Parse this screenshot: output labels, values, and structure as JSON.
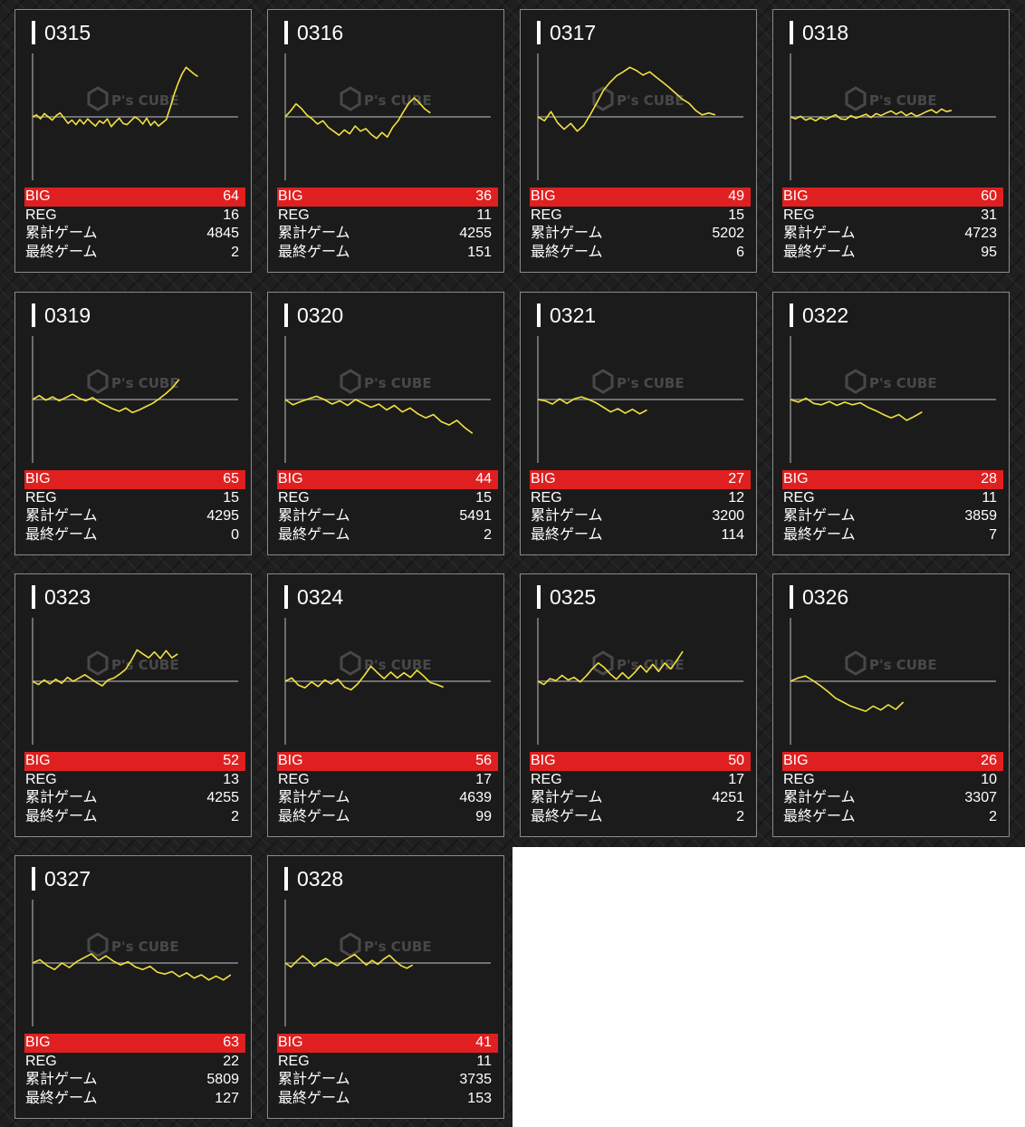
{
  "colors": {
    "accent_big": "#e02020",
    "line": "#f2e240",
    "baseline": "#8c8c8c"
  },
  "watermark": {
    "logo_text": "P's CUBE",
    "icon": "hexagon-cube-icon"
  },
  "labels": {
    "big": "BIG",
    "reg": "REG",
    "total": "累計ゲーム",
    "last": "最終ゲーム"
  },
  "machines": [
    {
      "id": "0315",
      "big": "64",
      "reg": "16",
      "total": "4845",
      "last": "2",
      "trend": [
        0,
        0.3,
        -0.3,
        0.5,
        0,
        -0.5,
        0.2,
        0.6,
        -0.2,
        -1,
        -0.5,
        -1.2,
        -0.4,
        -1.1,
        -0.3,
        -0.9,
        -1.4,
        -0.6,
        -1,
        -0.3,
        -1.5,
        -0.8,
        -0.2,
        -1,
        -1.2,
        -0.6,
        0,
        -0.4,
        -1.1,
        -0.2,
        -1.3,
        -0.7,
        -1.4,
        -0.9,
        -0.4,
        1.5,
        3.5,
        5.2,
        6.6,
        7.6,
        7.1,
        6.6,
        6.2
      ]
    },
    {
      "id": "0316",
      "big": "36",
      "reg": "11",
      "total": "4255",
      "last": "151",
      "trend": [
        0,
        0.9,
        2,
        1.3,
        0.3,
        -0.3,
        -1.1,
        -0.6,
        -1.6,
        -2.2,
        -2.8,
        -2,
        -2.6,
        -1.4,
        -2.2,
        -1.8,
        -2.7,
        -3.3,
        -2.4,
        -3.1,
        -1.6,
        -0.6,
        0.8,
        2.1,
        2.9,
        2.1,
        1.2,
        0.6
      ]
    },
    {
      "id": "0317",
      "big": "49",
      "reg": "15",
      "total": "5202",
      "last": "6",
      "trend": [
        0,
        -0.6,
        0.8,
        -0.9,
        -1.9,
        -1,
        -2.2,
        -1.3,
        0.4,
        2.2,
        4.1,
        5.3,
        6.3,
        6.9,
        7.6,
        7.1,
        6.4,
        6.9,
        6.1,
        5.3,
        4.5,
        3.6,
        2.7,
        2.1,
        1,
        0.3,
        0.6,
        0.3
      ]
    },
    {
      "id": "0318",
      "big": "60",
      "reg": "31",
      "total": "4723",
      "last": "95",
      "trend": [
        0,
        -0.3,
        0.1,
        -0.5,
        -0.2,
        -0.6,
        -0.1,
        -0.4,
        0,
        0.3,
        -0.3,
        -0.4,
        0.2,
        -0.2,
        0.1,
        0.4,
        -0.1,
        0.5,
        0.2,
        0.6,
        0.9,
        0.4,
        0.8,
        0.2,
        0.6,
        0.1,
        0.4,
        0.8,
        1.1,
        0.6,
        1.2,
        0.8,
        1
      ]
    },
    {
      "id": "0319",
      "big": "65",
      "reg": "15",
      "total": "4295",
      "last": "0",
      "trend": [
        0,
        0.6,
        -0.1,
        0.4,
        -0.2,
        0.3,
        0.8,
        0.2,
        -0.2,
        0.3,
        -0.4,
        -0.9,
        -1.4,
        -1.8,
        -1.3,
        -2,
        -1.6,
        -1.1,
        -0.6,
        0.1,
        0.9,
        1.8,
        3.1
      ]
    },
    {
      "id": "0320",
      "big": "44",
      "reg": "15",
      "total": "5491",
      "last": "2",
      "trend": [
        0,
        -0.8,
        -0.3,
        0.1,
        0.5,
        0,
        -0.7,
        -0.2,
        -0.9,
        0,
        -0.6,
        -1.2,
        -0.7,
        -1.6,
        -0.9,
        -1.9,
        -1.3,
        -2.2,
        -2.8,
        -2.3,
        -3.4,
        -3.9,
        -3.2,
        -4.3,
        -5.2
      ]
    },
    {
      "id": "0321",
      "big": "27",
      "reg": "12",
      "total": "3200",
      "last": "114",
      "trend": [
        0,
        -0.2,
        -0.7,
        0.1,
        -0.6,
        0.1,
        0.4,
        0,
        -0.5,
        -1.2,
        -1.9,
        -1.4,
        -2.1,
        -1.5,
        -2.2,
        -1.6
      ]
    },
    {
      "id": "0322",
      "big": "28",
      "reg": "11",
      "total": "3859",
      "last": "7",
      "trend": [
        0,
        -0.4,
        0.2,
        -0.6,
        -0.8,
        -0.3,
        -0.9,
        -0.4,
        -0.8,
        -0.5,
        -1.2,
        -1.7,
        -2.3,
        -2.8,
        -2.3,
        -3.2,
        -2.6,
        -1.9
      ]
    },
    {
      "id": "0323",
      "big": "52",
      "reg": "13",
      "total": "4255",
      "last": "2",
      "trend": [
        0,
        -0.5,
        0.2,
        -0.4,
        0.3,
        -0.3,
        0.6,
        0,
        0.5,
        1,
        0.4,
        -0.2,
        -0.7,
        0.2,
        0.5,
        1.1,
        1.8,
        3.2,
        4.8,
        4.2,
        3.6,
        4.5,
        3.5,
        4.7,
        3.6,
        4.2
      ]
    },
    {
      "id": "0324",
      "big": "56",
      "reg": "17",
      "total": "4639",
      "last": "99",
      "trend": [
        0,
        0.5,
        -0.6,
        -1,
        -0.1,
        -0.8,
        0.2,
        -0.4,
        0.3,
        -0.9,
        -1.3,
        -0.4,
        0.9,
        2.3,
        1.3,
        0.4,
        1.4,
        0.5,
        1.3,
        0.6,
        1.7,
        0.8,
        -0.2,
        -0.5,
        -0.9
      ]
    },
    {
      "id": "0325",
      "big": "50",
      "reg": "17",
      "total": "4251",
      "last": "2",
      "trend": [
        0,
        -0.5,
        0.4,
        0.1,
        0.9,
        0.2,
        0.6,
        -0.1,
        0.8,
        1.9,
        2.8,
        2.1,
        1.1,
        0.3,
        1.3,
        0.4,
        1.3,
        2.4,
        1.4,
        2.6,
        1.5,
        2.8,
        1.9,
        3.2,
        4.6
      ]
    },
    {
      "id": "0326",
      "big": "26",
      "reg": "10",
      "total": "3307",
      "last": "2",
      "trend": [
        0,
        0.5,
        0.8,
        0.1,
        -0.7,
        -1.6,
        -2.6,
        -3.2,
        -3.8,
        -4.2,
        -4.6,
        -3.8,
        -4.4,
        -3.6,
        -4.3,
        -3.2
      ]
    },
    {
      "id": "0327",
      "big": "63",
      "reg": "22",
      "total": "5809",
      "last": "127",
      "trend": [
        0,
        0.5,
        -0.4,
        -1,
        0,
        -0.7,
        0.2,
        0.8,
        1.4,
        0.4,
        1.1,
        0.3,
        -0.3,
        0.2,
        -0.6,
        -1,
        -0.5,
        -1.4,
        -1.7,
        -1.3,
        -2.1,
        -1.5,
        -2.3,
        -1.8,
        -2.6,
        -2,
        -2.6,
        -1.8
      ]
    },
    {
      "id": "0328",
      "big": "41",
      "reg": "11",
      "total": "3735",
      "last": "153",
      "trend": [
        0,
        -0.6,
        0.3,
        1.1,
        0.4,
        -0.5,
        0.2,
        0.7,
        0.1,
        -0.4,
        0.3,
        0.8,
        1.3,
        0.5,
        -0.3,
        0.4,
        -0.2,
        0.6,
        1.2,
        0.3,
        -0.4,
        -0.8,
        -0.3
      ]
    }
  ]
}
